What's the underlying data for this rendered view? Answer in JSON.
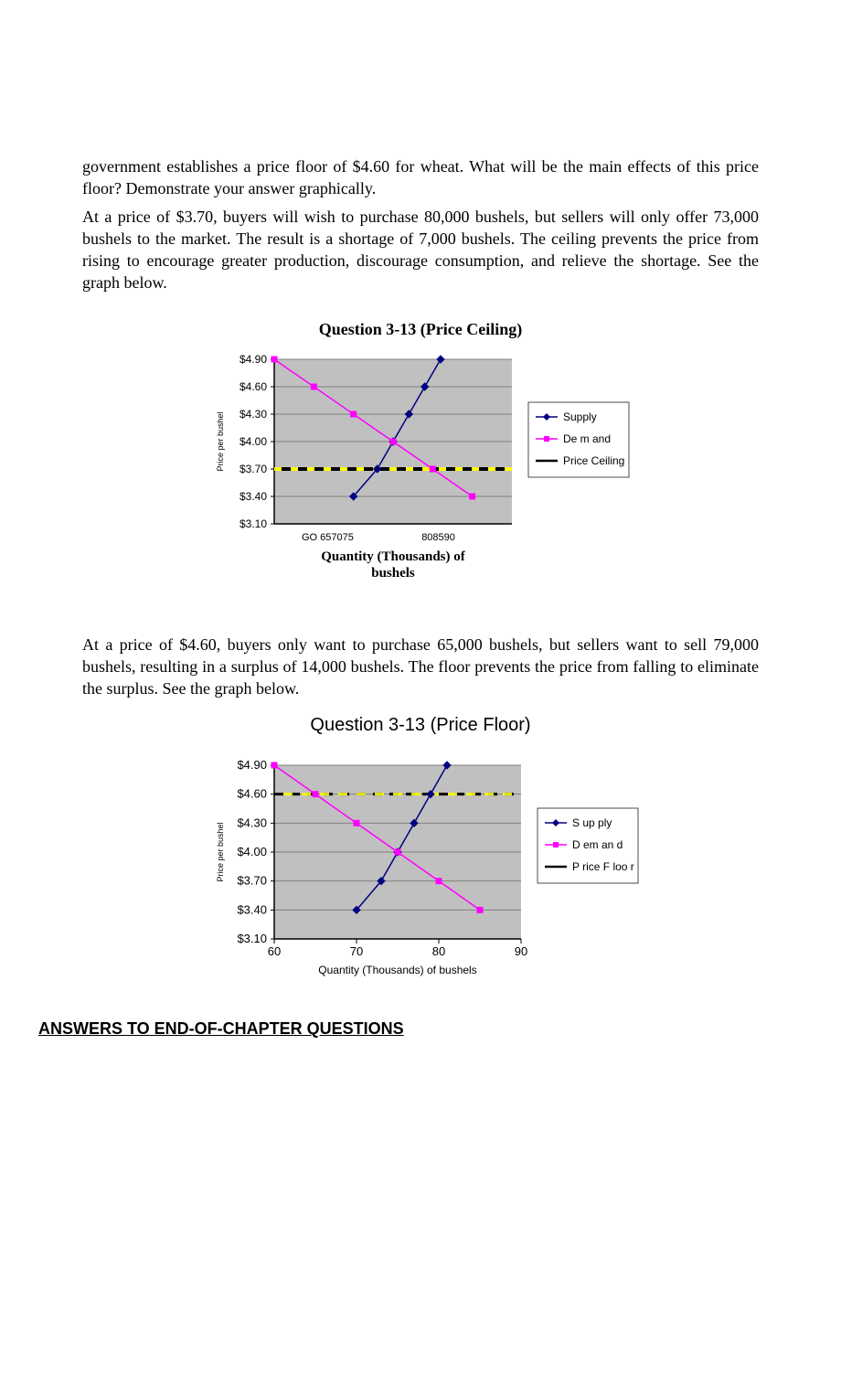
{
  "para1": "government establishes a price floor of $4.60 for wheat. What will be the main effects of this price floor? Demonstrate your answer graphically.",
  "para2": "At a price of $3.70, buyers will wish to purchase 80,000 bushels, but sellers will only offer 73,000 bushels to the market. The result is a shortage of 7,000 bushels. The ceiling prevents the price from rising to encourage greater production, discourage consumption, and relieve the shortage. See the graph below.",
  "chart1": {
    "title": "Question 3-13 (Price Ceiling)",
    "type": "line",
    "plot_bg": "#c0c0c0",
    "grid_color": "#808080",
    "y_ticks": [
      "$3.10",
      "$3.40",
      "$3.70",
      "$4.00",
      "$4.30",
      "$4.60",
      "$4.90"
    ],
    "y_axis_label_img": "Price per bushel",
    "x_ticks_left": "GO 657075",
    "x_ticks_right": "808590",
    "x_axis_label_line1": "Quantity (Thousands) of",
    "x_axis_label_line2": "bushels",
    "legend": [
      {
        "label": "Supply",
        "color": "#000080",
        "marker": "diamond"
      },
      {
        "label": "De m and",
        "color": "#ff00ff",
        "marker": "square"
      },
      {
        "label": "Price Ceiling",
        "color": "#000000",
        "marker": "none"
      }
    ],
    "supply_color": "#000080",
    "demand_color": "#ff00ff",
    "ceiling_color": "#000000",
    "supply_points": [
      [
        70,
        3.4
      ],
      [
        73,
        3.7
      ],
      [
        75,
        4.0
      ],
      [
        77,
        4.3
      ],
      [
        79,
        4.6
      ],
      [
        81,
        4.9
      ]
    ],
    "demand_points": [
      [
        60,
        4.9
      ],
      [
        65,
        4.6
      ],
      [
        70,
        4.3
      ],
      [
        75,
        4.0
      ],
      [
        80,
        3.7
      ],
      [
        85,
        3.4
      ]
    ],
    "ceiling_y": 3.7,
    "xlim": [
      60,
      90
    ],
    "ylim": [
      3.1,
      4.9
    ],
    "ceiling_dash": true
  },
  "para3": "At a price of $4.60, buyers only want to purchase 65,000 bushels, but sellers want to sell 79,000 bushels, resulting in a surplus of 14,000 bushels. The floor prevents the price from falling to eliminate the surplus. See the graph below.",
  "chart2": {
    "title": "Question 3-13 (Price Floor)",
    "type": "line",
    "plot_bg": "#c0c0c0",
    "grid_color": "#808080",
    "y_ticks": [
      "$3.10",
      "$3.40",
      "$3.70",
      "$4.00",
      "$4.30",
      "$4.60",
      "$4.90"
    ],
    "x_ticks": [
      "60",
      "70",
      "80",
      "90"
    ],
    "x_axis_label": "Quantity (Thousands) of bushels",
    "y_axis_label_img": "Price per bushel",
    "legend": [
      {
        "label": "S up ply",
        "color": "#000080",
        "marker": "diamond"
      },
      {
        "label": "D em an d",
        "color": "#ff00ff",
        "marker": "square"
      },
      {
        "label": "P rice F loo r",
        "color": "#000000",
        "marker": "none"
      }
    ],
    "supply_color": "#000080",
    "demand_color": "#ff00ff",
    "floor_color": "#000000",
    "supply_points": [
      [
        70,
        3.4
      ],
      [
        73,
        3.7
      ],
      [
        75,
        4.0
      ],
      [
        77,
        4.3
      ],
      [
        79,
        4.6
      ],
      [
        81,
        4.9
      ]
    ],
    "demand_points": [
      [
        60,
        4.9
      ],
      [
        65,
        4.6
      ],
      [
        70,
        4.3
      ],
      [
        75,
        4.0
      ],
      [
        80,
        3.7
      ],
      [
        85,
        3.4
      ]
    ],
    "floor_y": 4.6,
    "xlim": [
      60,
      90
    ],
    "ylim": [
      3.1,
      4.9
    ],
    "floor_dash": true
  },
  "section_head": "ANSWERS TO END-OF-CHAPTER QUESTIONS"
}
